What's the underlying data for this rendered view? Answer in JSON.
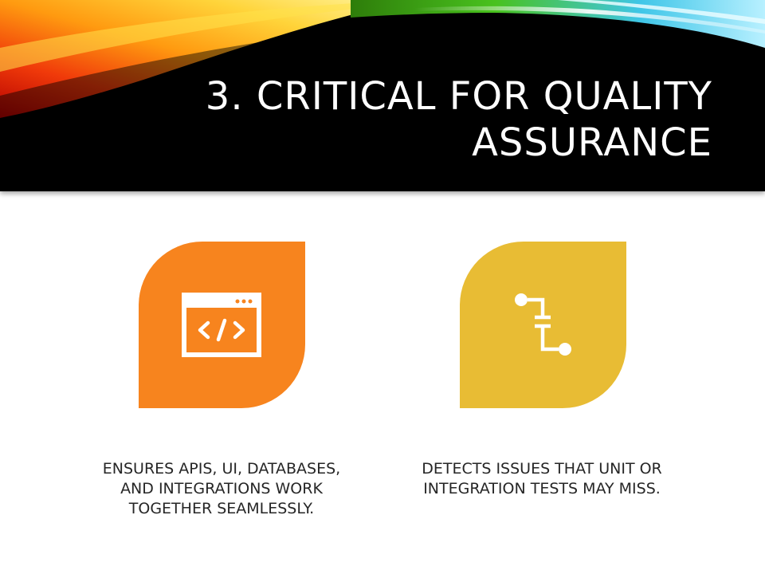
{
  "slide": {
    "title": "3. CRITICAL FOR QUALITY ASSURANCE",
    "cards": [
      {
        "icon": "code-window-icon",
        "color": "#F7841E",
        "caption": "ENSURES APIS, UI, DATABASES, AND INTEGRATIONS WORK TOGETHER SEAMLESSLY."
      },
      {
        "icon": "connector-flow-icon",
        "color": "#E8BC34",
        "caption": "DETECTS ISSUES THAT UNIT OR INTEGRATION TESTS MAY MISS."
      }
    ]
  },
  "theme": {
    "header_background": "#000000",
    "title_color": "#FFFFFF",
    "caption_color": "#262626"
  }
}
